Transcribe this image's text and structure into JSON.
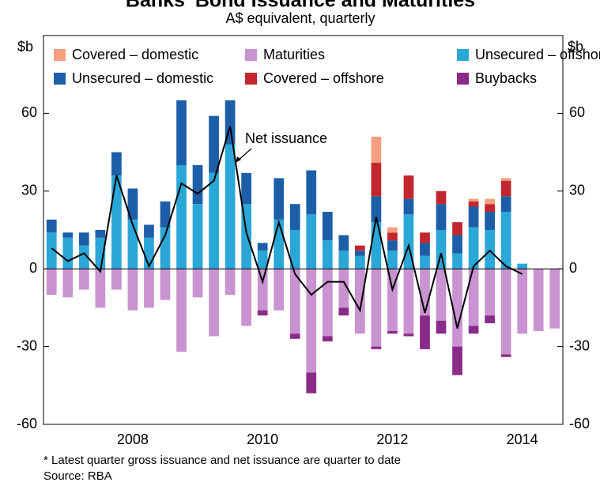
{
  "chart_data": {
    "type": "bar",
    "title": "Banks' Bond Issuance and Maturities",
    "subtitle": "A$ equivalent, quarterly",
    "ylabel": "$b",
    "y2label": "$b",
    "categories": [
      null,
      null,
      null,
      null,
      null,
      null,
      null,
      null,
      null,
      null,
      null,
      null,
      null,
      null,
      null,
      null,
      null,
      null,
      null,
      null,
      null,
      null,
      null,
      null,
      null,
      null,
      null,
      null,
      null,
      null,
      null,
      null
    ],
    "xticks": [
      {
        "value": 5.5,
        "label": "2008"
      },
      {
        "value": 13.5,
        "label": "2010"
      },
      {
        "value": 21.5,
        "label": "2012"
      },
      {
        "value": 29.5,
        "label": "2014"
      }
    ],
    "ylim": [
      -60,
      90
    ],
    "yticks": [
      -60,
      -30,
      0,
      30,
      60
    ],
    "y2lim": [
      -60,
      90
    ],
    "y2ticks": [
      -60,
      -30,
      0,
      30,
      60
    ],
    "grid": false,
    "series": [
      {
        "name": "Unsecured – offshore",
        "color": "#2aa7d6",
        "values": [
          14,
          12,
          9,
          12,
          36,
          19,
          12,
          16,
          40,
          25,
          37,
          48,
          25,
          7,
          19,
          15,
          21,
          11,
          7,
          5,
          18,
          7,
          21,
          5,
          15,
          6,
          16,
          15,
          22,
          2,
          null,
          null
        ]
      },
      {
        "name": "Unsecured – domestic",
        "color": "#1d5ea8",
        "values": [
          5,
          2,
          5,
          3,
          9,
          12,
          5,
          10,
          25,
          15,
          22,
          17,
          12,
          3,
          16,
          10,
          17,
          11,
          6,
          2,
          10,
          4,
          6,
          5,
          10,
          7,
          8,
          7,
          6,
          null,
          null,
          null
        ]
      },
      {
        "name": "Covered – offshore",
        "color": "#c3262e",
        "values": [
          null,
          null,
          null,
          null,
          null,
          null,
          null,
          null,
          null,
          null,
          null,
          null,
          null,
          null,
          null,
          null,
          null,
          null,
          null,
          2,
          13,
          3,
          9,
          4,
          5,
          5,
          2,
          3,
          6,
          null,
          null,
          null
        ]
      },
      {
        "name": "Covered – domestic",
        "color": "#f59f80",
        "values": [
          null,
          null,
          null,
          null,
          null,
          null,
          null,
          null,
          null,
          null,
          null,
          null,
          null,
          null,
          null,
          null,
          null,
          null,
          null,
          null,
          10,
          2,
          null,
          null,
          null,
          null,
          1,
          2,
          1,
          null,
          null,
          null
        ]
      },
      {
        "name": "Maturities",
        "color": "#c992d0",
        "values": [
          -10,
          -11,
          -8,
          -15,
          -8,
          -16,
          -15,
          -12,
          -32,
          -11,
          -26,
          -10,
          -22,
          -16,
          -16,
          -25,
          -40,
          -26,
          -15,
          -25,
          -30,
          -24,
          -25,
          -18,
          -20,
          -30,
          -22,
          -18,
          -33,
          -25,
          -24,
          -23
        ]
      },
      {
        "name": "Buybacks",
        "color": "#8a2a89",
        "values": [
          null,
          null,
          null,
          null,
          null,
          null,
          null,
          null,
          null,
          null,
          null,
          null,
          null,
          -2,
          null,
          -2,
          -8,
          -2,
          -3,
          null,
          -1,
          -1,
          -1,
          -13,
          -5,
          -11,
          -3,
          -3,
          -1,
          null,
          null,
          null
        ]
      }
    ],
    "line": {
      "name": "Net issuance",
      "color": "#000000",
      "values": [
        8,
        3,
        6,
        -1,
        36,
        17,
        1,
        13,
        33,
        29,
        34,
        55,
        14,
        -5,
        18,
        -2,
        -10,
        -5,
        -5,
        -16,
        20,
        -8,
        9,
        -17,
        6,
        -23,
        1,
        7,
        1,
        -2,
        null,
        null
      ]
    },
    "footnote": "*      Latest quarter gross issuance and net issuance are quarter to date",
    "source": "Source: RBA"
  }
}
